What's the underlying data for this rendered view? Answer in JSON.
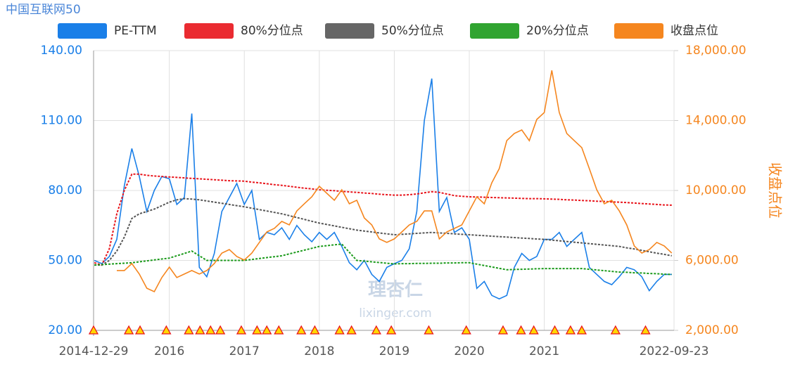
{
  "chart_data": {
    "type": "line",
    "title": "中国互联网50",
    "watermark": [
      "理杏仁",
      "lixinger.com"
    ],
    "y2_label": "收盘点位",
    "x": [
      2015.0,
      2015.1,
      2015.2,
      2015.3,
      2015.4,
      2015.5,
      2015.6,
      2015.7,
      2015.8,
      2015.9,
      2016.0,
      2016.1,
      2016.2,
      2016.3,
      2016.4,
      2016.5,
      2016.6,
      2016.7,
      2016.8,
      2016.9,
      2017.0,
      2017.1,
      2017.2,
      2017.3,
      2017.4,
      2017.5,
      2017.6,
      2017.7,
      2017.8,
      2017.9,
      2018.0,
      2018.1,
      2018.2,
      2018.3,
      2018.4,
      2018.5,
      2018.6,
      2018.7,
      2018.8,
      2018.9,
      2019.0,
      2019.1,
      2019.2,
      2019.3,
      2019.4,
      2019.5,
      2019.6,
      2019.7,
      2019.8,
      2019.9,
      2020.0,
      2020.1,
      2020.2,
      2020.3,
      2020.4,
      2020.5,
      2020.6,
      2020.7,
      2020.8,
      2020.9,
      2021.0,
      2021.1,
      2021.2,
      2021.3,
      2021.4,
      2021.5,
      2021.6,
      2021.7,
      2021.8,
      2021.9,
      2022.0,
      2022.1,
      2022.2,
      2022.3,
      2022.4,
      2022.5,
      2022.6,
      2022.7
    ],
    "series": [
      {
        "name": "PE-TTM",
        "color": "#1a7fe8",
        "axis": "y",
        "dashed": false,
        "values": [
          50,
          48.6,
          51.7,
          59,
          82,
          98,
          86,
          71,
          80,
          86,
          85,
          74,
          77,
          113,
          47,
          43,
          53,
          71,
          77,
          83,
          74,
          80,
          59,
          62,
          61,
          64,
          59,
          65,
          61,
          58,
          62,
          59,
          62,
          56,
          49,
          46,
          50,
          44,
          41,
          47,
          48.6,
          50,
          55,
          71,
          110,
          128,
          71,
          77,
          62,
          64,
          59,
          38,
          41,
          35,
          33.5,
          35,
          47,
          53,
          50,
          51.7,
          59,
          59,
          62,
          56,
          59,
          62,
          47,
          44,
          41,
          39.6,
          43,
          47,
          46,
          43,
          37,
          41,
          44,
          44
        ]
      },
      {
        "name": "80%分位点",
        "color": "#e8141b",
        "axis": "y",
        "dashed": true,
        "values": [
          49,
          48,
          55,
          70,
          80,
          87,
          87,
          86.5,
          86.2,
          86,
          85.8,
          85.6,
          85.4,
          85.2,
          85,
          84.8,
          84.6,
          84.4,
          84.2,
          84.1,
          84,
          83.6,
          83.3,
          82.9,
          82.5,
          82.2,
          81.8,
          81.4,
          81,
          80.7,
          80.3,
          80.1,
          79.9,
          79.6,
          79.4,
          79.2,
          78.9,
          78.7,
          78.4,
          78.2,
          78,
          78,
          78.2,
          78.5,
          79,
          79.5,
          79.2,
          78.5,
          77.8,
          77.5,
          77.3,
          77.2,
          77.1,
          77,
          76.9,
          76.8,
          76.7,
          76.6,
          76.5,
          76.5,
          76.4,
          76.3,
          76.2,
          76,
          75.9,
          75.7,
          75.6,
          75.4,
          75.3,
          75.1,
          75,
          74.8,
          74.6,
          74.4,
          74.2,
          74,
          73.8,
          73.7
        ]
      },
      {
        "name": "50%分位点",
        "color": "#555555",
        "axis": "y",
        "dashed": true,
        "values": [
          48,
          48,
          50,
          54,
          60,
          68,
          70,
          71,
          72,
          73.5,
          75,
          76,
          76.5,
          76.3,
          76,
          75.5,
          75,
          74.5,
          74,
          73.5,
          73,
          72.4,
          71.8,
          71.2,
          70.6,
          70,
          69.2,
          68.4,
          67.6,
          66.8,
          66,
          65.4,
          64.8,
          64.2,
          63.6,
          63,
          62.6,
          62.2,
          61.8,
          61.4,
          61,
          61.2,
          61.4,
          61.6,
          61.8,
          62,
          61.8,
          61.6,
          61.4,
          61.2,
          61,
          60.8,
          60.6,
          60.4,
          60.2,
          60,
          59.8,
          59.6,
          59.4,
          59.2,
          59,
          58.7,
          58.4,
          58.1,
          57.8,
          57.5,
          57.2,
          56.9,
          56.6,
          56.3,
          56,
          55.4,
          54.9,
          54.3,
          53.7,
          53.1,
          52.6,
          52
        ]
      },
      {
        "name": "20%分位点",
        "color": "#1a9a1a",
        "axis": "y",
        "dashed": true,
        "values": [
          48,
          48.2,
          48.4,
          48.6,
          48.8,
          49,
          49.4,
          49.8,
          50.2,
          50.6,
          51,
          52,
          53,
          54,
          52,
          50,
          50,
          50,
          50,
          50,
          50,
          50.4,
          50.8,
          51.2,
          51.6,
          52,
          52.8,
          53.6,
          54.4,
          55.2,
          56,
          56.3,
          56.7,
          57,
          53.5,
          50,
          49.7,
          49.4,
          49.1,
          48.8,
          48.5,
          48.6,
          48.6,
          48.7,
          48.7,
          48.8,
          48.8,
          48.9,
          48.9,
          49,
          49,
          48.4,
          47.8,
          47.2,
          46.6,
          46,
          46.1,
          46.2,
          46.3,
          46.4,
          46.5,
          46.5,
          46.5,
          46.5,
          46.5,
          46.5,
          46.2,
          45.9,
          45.6,
          45.3,
          45,
          44.9,
          44.7,
          44.6,
          44.4,
          44.3,
          44.1,
          44
        ]
      },
      {
        "name": "收盘点位",
        "color": "#f5861f",
        "axis": "y2",
        "dashed": false,
        "values": [
          null,
          null,
          null,
          5420,
          5420,
          5820,
          5220,
          4410,
          4210,
          5020,
          5620,
          5020,
          5220,
          5420,
          5220,
          5420,
          5820,
          6420,
          6620,
          6220,
          6020,
          6420,
          7030,
          7630,
          7830,
          8230,
          8030,
          8830,
          9240,
          9640,
          10240,
          9840,
          9440,
          10040,
          9240,
          9440,
          8430,
          8030,
          7230,
          7030,
          7230,
          7630,
          8030,
          8230,
          8830,
          8830,
          7230,
          7630,
          7830,
          8030,
          8830,
          9640,
          9240,
          10440,
          11250,
          12850,
          13260,
          13460,
          12850,
          14060,
          14460,
          16870,
          14460,
          13260,
          12850,
          12450,
          11250,
          10040,
          9240,
          9440,
          8830,
          8030,
          6830,
          6420,
          6620,
          7030,
          6830,
          6420
        ]
      }
    ],
    "event_markers": [
      2014.99,
      2015.46,
      2015.61,
      2015.96,
      2016.26,
      2016.41,
      2016.55,
      2016.68,
      2016.96,
      2017.17,
      2017.3,
      2017.46,
      2017.76,
      2017.94,
      2018.27,
      2018.43,
      2018.76,
      2018.96,
      2019.46,
      2019.96,
      2020.45,
      2020.69,
      2020.86,
      2021.14,
      2021.35,
      2021.5,
      2021.95,
      2022.35
    ],
    "xlim": [
      2014.99,
      2022.73
    ],
    "xticks": [
      {
        "value": 2014.99,
        "label": "2014-12-29"
      },
      2016,
      2017,
      2018,
      2019,
      2020,
      2021,
      {
        "value": 2022.73,
        "label": "2022-09-23"
      }
    ],
    "ylim": [
      20,
      140
    ],
    "yticks": [
      {
        "value": 20,
        "label": "20.00"
      },
      {
        "value": 50,
        "label": "50.00"
      },
      {
        "value": 80,
        "label": "80.00"
      },
      {
        "value": 110,
        "label": "110.00"
      },
      {
        "value": 140,
        "label": "140.00"
      }
    ],
    "y2lim": [
      2000,
      18000
    ],
    "y2ticks": [
      {
        "value": 2000,
        "label": "2,000.00"
      },
      {
        "value": 6000,
        "label": "6,000.00"
      },
      {
        "value": 10000,
        "label": "10,000.00"
      },
      {
        "value": 14000,
        "label": "14,000.00"
      },
      {
        "value": 18000,
        "label": "18,000.00"
      }
    ],
    "grid": true
  }
}
